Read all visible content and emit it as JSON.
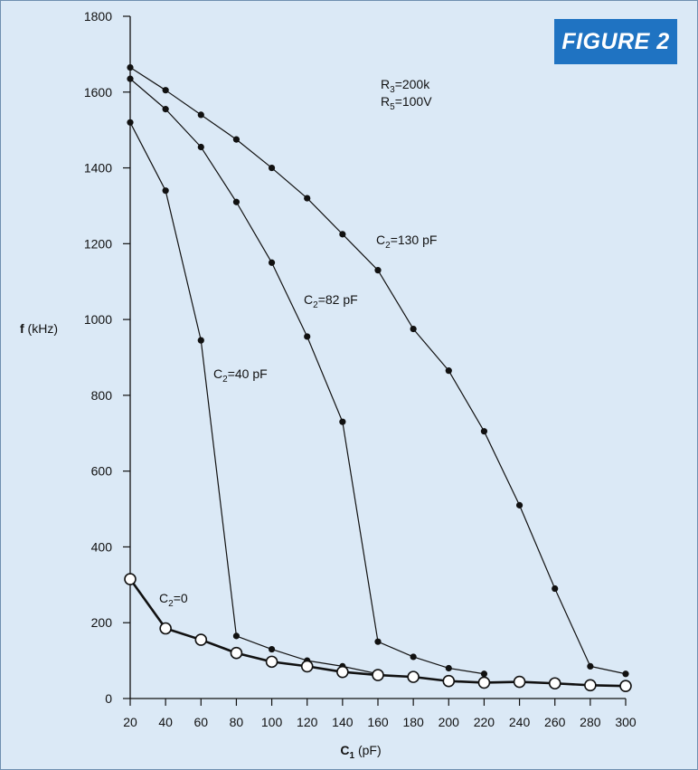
{
  "figure_label": "FIGURE 2",
  "colors": {
    "background": "#dbe9f6",
    "badge": "#1f73c2",
    "ink": "#111111"
  },
  "chart_data": {
    "type": "line",
    "title": "",
    "xlabel": {
      "bold": "C",
      "sub": "1",
      "unit": " (pF)"
    },
    "ylabel": {
      "bold": "f",
      "unit": " (kHz)"
    },
    "xlim": [
      20,
      300
    ],
    "ylim": [
      0,
      1800
    ],
    "x_ticks": [
      20,
      40,
      60,
      80,
      100,
      120,
      140,
      160,
      180,
      200,
      220,
      240,
      260,
      280,
      300
    ],
    "y_ticks": [
      0,
      200,
      400,
      600,
      800,
      1000,
      1200,
      1400,
      1600,
      1800
    ],
    "grid": false,
    "legend": "none",
    "params": [
      {
        "main": "R",
        "sub": "3",
        "rest": "=200k"
      },
      {
        "main": "R",
        "sub": "5",
        "rest": "=100V"
      }
    ],
    "series": [
      {
        "label": {
          "main": "C",
          "sub": "2",
          "rest": "=130 pF"
        },
        "marker": "filled",
        "x": [
          20,
          40,
          60,
          80,
          100,
          120,
          140,
          160,
          180,
          200,
          220,
          240,
          260,
          280,
          300
        ],
        "values": [
          1665,
          1605,
          1540,
          1475,
          1400,
          1320,
          1225,
          1130,
          975,
          865,
          705,
          510,
          290,
          85,
          65
        ]
      },
      {
        "label": {
          "main": "C",
          "sub": "2",
          "rest": "=82 pF"
        },
        "marker": "filled",
        "x": [
          20,
          40,
          60,
          80,
          100,
          120,
          140,
          160,
          180,
          200,
          220
        ],
        "values": [
          1635,
          1555,
          1455,
          1310,
          1150,
          955,
          730,
          150,
          110,
          80,
          65
        ]
      },
      {
        "label": {
          "main": "C",
          "sub": "2",
          "rest": "=40 pF"
        },
        "marker": "filled",
        "x": [
          20,
          40,
          60,
          80,
          100,
          120,
          140,
          160
        ],
        "values": [
          1520,
          1340,
          945,
          165,
          130,
          100,
          85,
          65
        ]
      },
      {
        "label": {
          "main": "C",
          "sub": "2",
          "rest": "=0"
        },
        "marker": "open",
        "x": [
          20,
          40,
          60,
          80,
          100,
          120,
          140,
          160,
          180,
          200,
          220,
          240,
          260,
          280,
          300
        ],
        "values": [
          315,
          185,
          155,
          120,
          97,
          85,
          70,
          62,
          57,
          46,
          42,
          44,
          40,
          35,
          33
        ]
      }
    ]
  }
}
